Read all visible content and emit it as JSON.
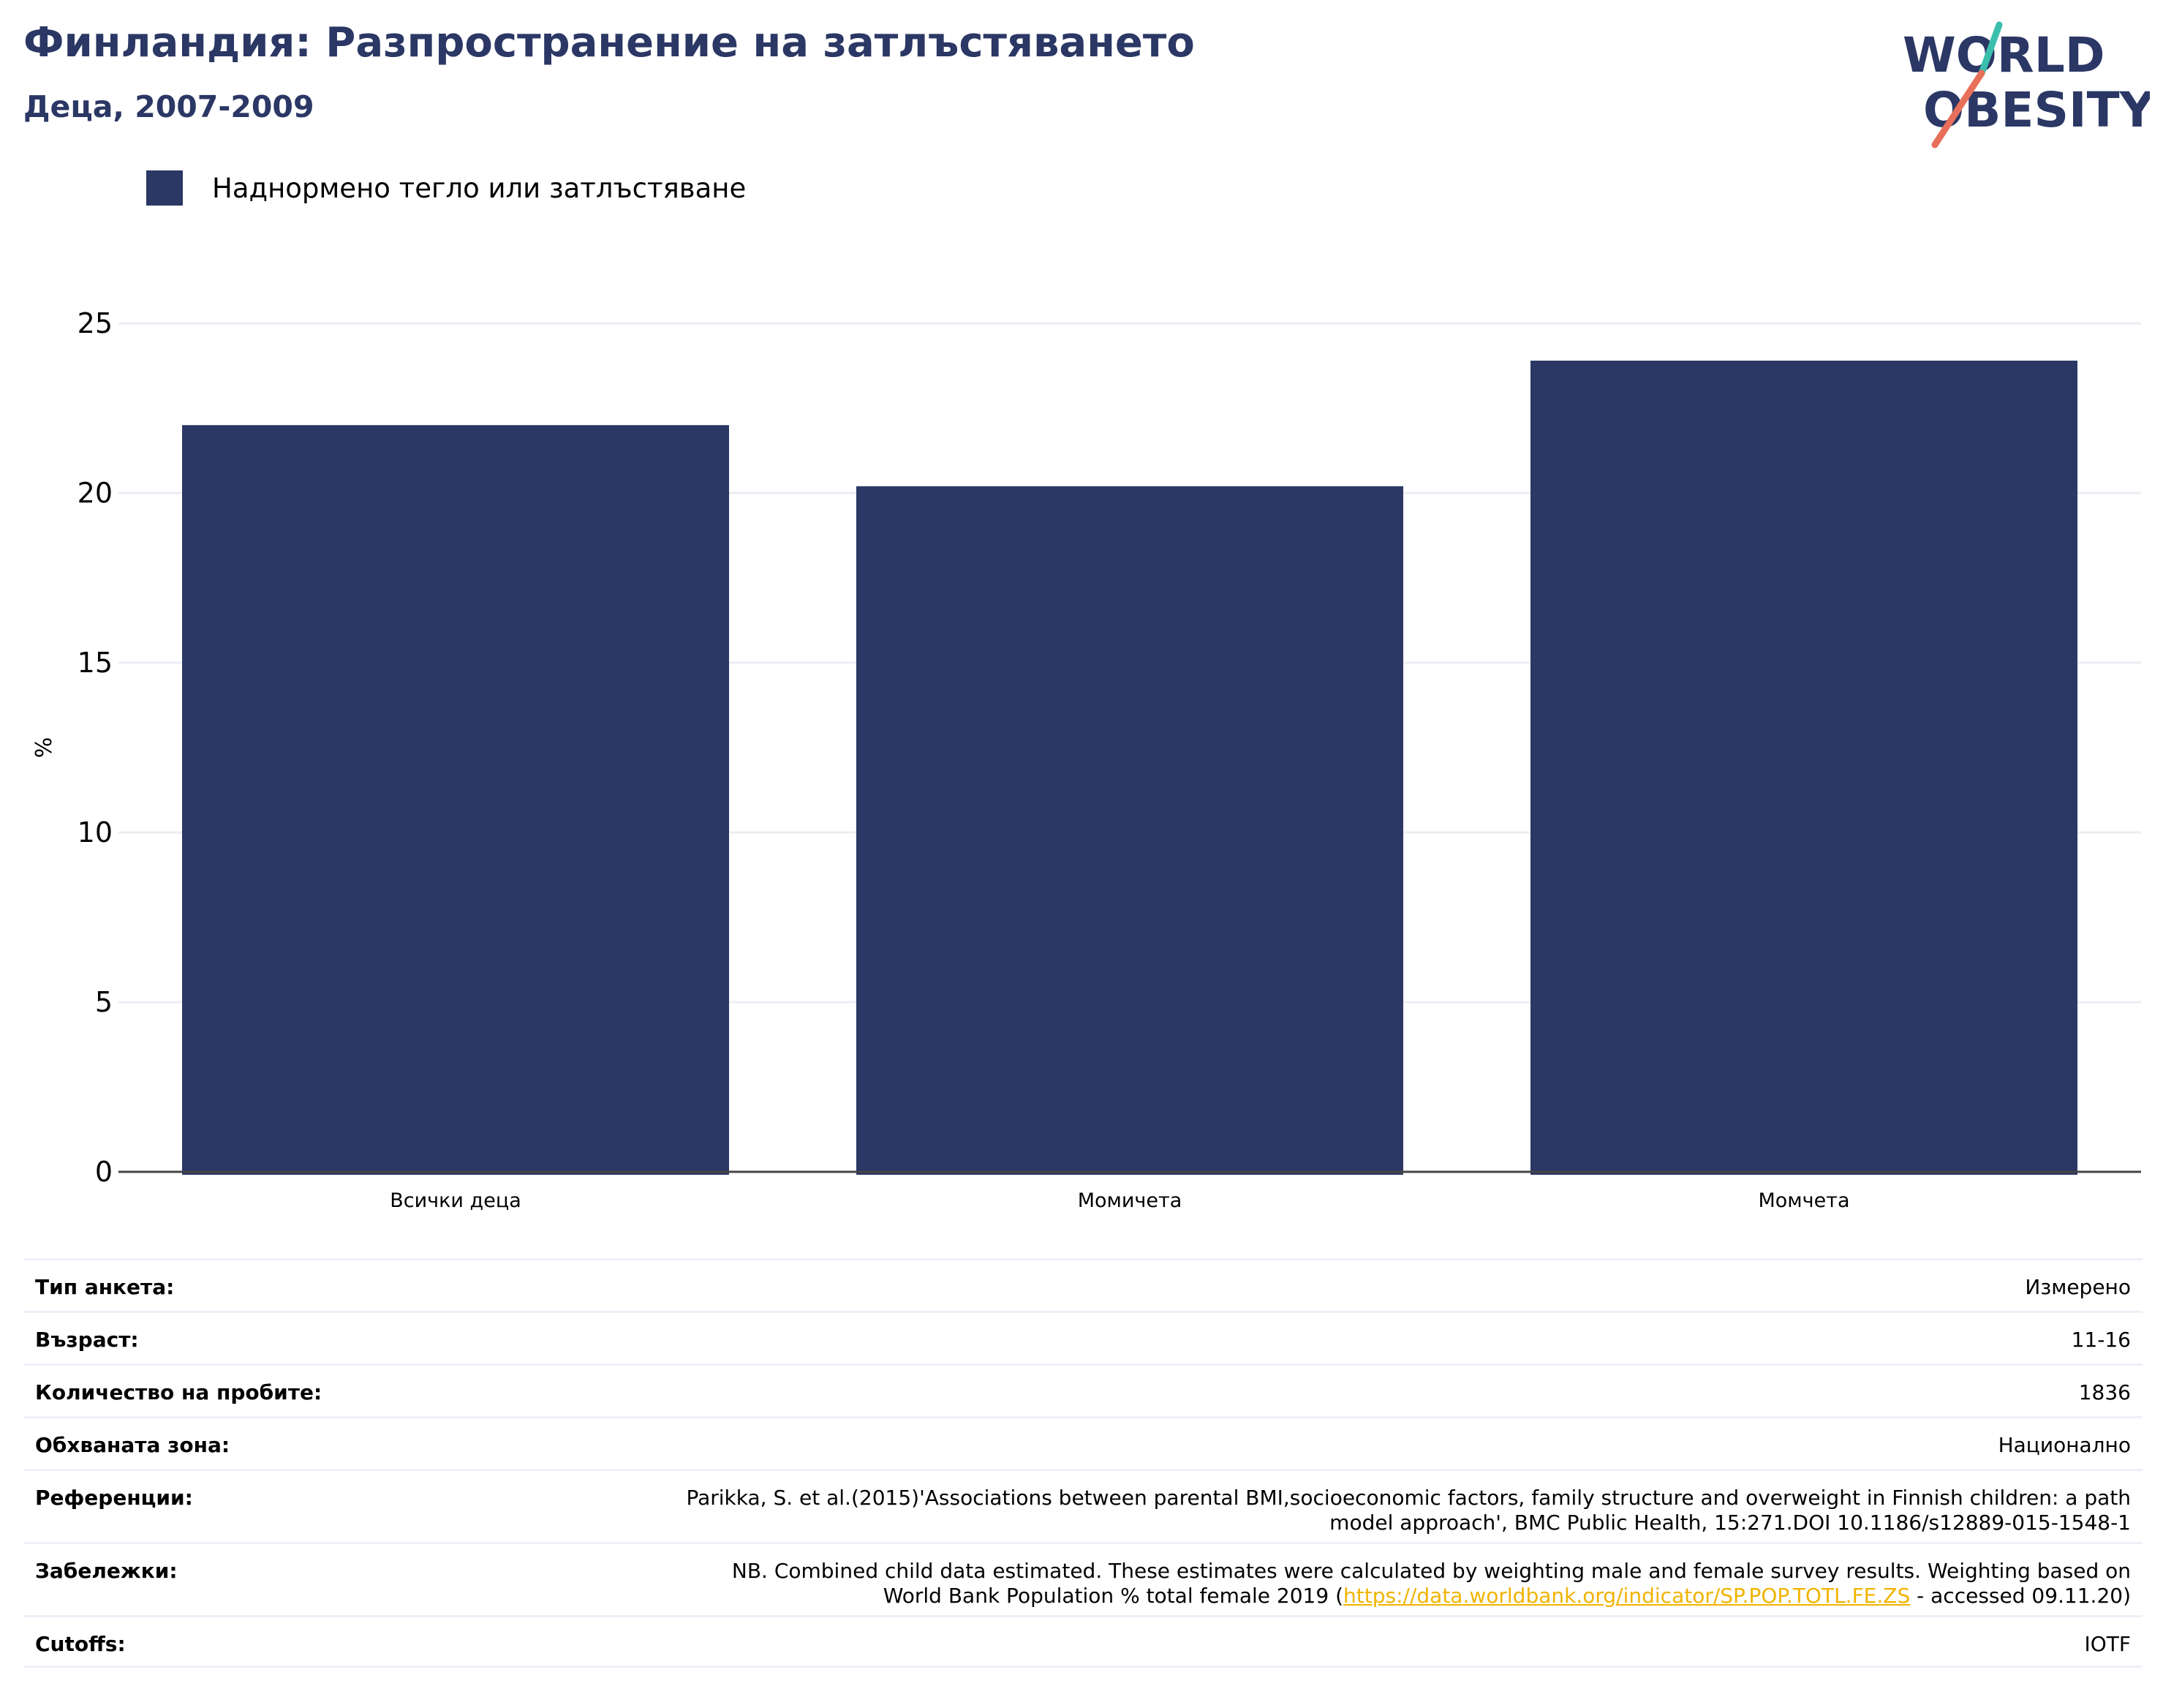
{
  "header": {
    "title": "Финландия: Разпространение на затлъстяването",
    "subtitle": "Деца, 2007-2009"
  },
  "logo": {
    "line1": "WORLD",
    "line2": "OBESITY"
  },
  "legend": {
    "label": "Наднормено тегло или затлъстяване",
    "color": "#2b3764"
  },
  "chart_data": {
    "type": "bar",
    "categories": [
      "Всички деца",
      "Момичета",
      "Момчета"
    ],
    "series": [
      {
        "name": "Наднормено тегло или затлъстяване",
        "values": [
          22.0,
          20.2,
          23.9
        ]
      }
    ],
    "ylabel": "%",
    "xlabel": "",
    "ylim": [
      0,
      25
    ],
    "yticks": [
      0,
      5,
      10,
      15,
      20,
      25
    ],
    "grid": true,
    "legend_position": "top-left",
    "bar_color": "#2b3764"
  },
  "meta": {
    "survey_type": {
      "label": "Тип анкета:",
      "value": "Измерено"
    },
    "age": {
      "label": "Възраст:",
      "value": "11-16"
    },
    "sample_size": {
      "label": "Количество на пробите:",
      "value": "1836"
    },
    "area": {
      "label": "Обхваната зона:",
      "value": "Национално"
    },
    "references": {
      "label": "Референции:",
      "value_line1": "Parikka, S. et al.(2015)'Associations between parental BMI,socioeconomic factors, family structure and overweight in Finnish children: a path",
      "value_line2": "model approach', BMC Public Health, 15:271.DOI 10.1186/s12889-015-1548-1"
    },
    "notes": {
      "label": "Забележки:",
      "value_line1": "NB. Combined child data estimated. These estimates were calculated by weighting male and female survey results. Weighting based on",
      "value_line2_before": "World Bank Population % total female 2019 (",
      "link": "https://data.worldbank.org/indicator/SP.POP.TOTL.FE.ZS",
      "value_line2_after": " - accessed 09.11.20)"
    },
    "cutoffs": {
      "label": "Cutoffs:",
      "value": "IOTF"
    }
  }
}
